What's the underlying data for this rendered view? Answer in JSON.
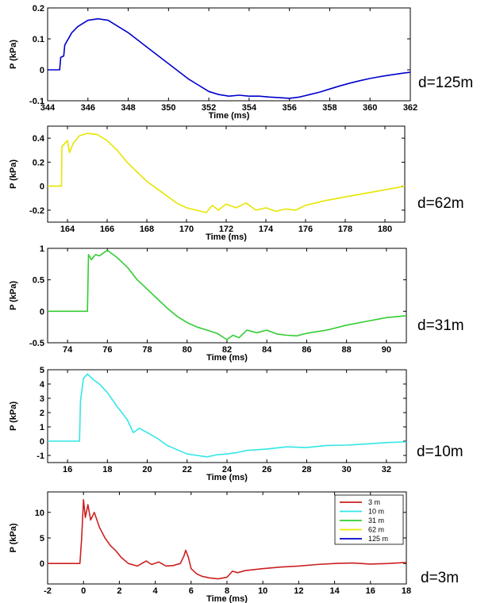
{
  "chart_data": [
    {
      "type": "line",
      "xlabel": "Time (ms)",
      "ylabel": "P (kPa)",
      "side_label": "d=125m",
      "xlim": [
        344,
        362
      ],
      "ylim": [
        -0.1,
        0.2
      ],
      "xticks": [
        344,
        346,
        348,
        350,
        352,
        354,
        356,
        358,
        360,
        362
      ],
      "xtick_labels": [
        "344",
        "346",
        "348",
        "350",
        "352",
        "354",
        "356",
        "358",
        "360",
        "362"
      ],
      "yticks": [
        -0.1,
        0,
        0.1,
        0.2
      ],
      "ytick_labels": [
        "-0.1",
        "0",
        "0.1",
        "0.2"
      ],
      "color": "#0000cc",
      "series": [
        {
          "x": [
            344,
            344.6,
            344.65,
            344.8,
            344.85,
            345.2,
            345.5,
            346,
            346.5,
            347,
            347.5,
            348,
            348.5,
            349,
            349.5,
            350,
            350.5,
            351,
            351.5,
            352,
            352.5,
            353,
            353.5,
            354,
            354.5,
            355,
            355.5,
            356,
            356.5,
            357,
            357.5,
            358,
            358.5,
            359,
            359.5,
            360,
            360.5,
            361,
            361.5,
            362
          ],
          "y": [
            0,
            0,
            0.04,
            0.045,
            0.08,
            0.12,
            0.14,
            0.16,
            0.165,
            0.16,
            0.14,
            0.12,
            0.095,
            0.07,
            0.045,
            0.02,
            -0.005,
            -0.03,
            -0.05,
            -0.07,
            -0.08,
            -0.085,
            -0.082,
            -0.085,
            -0.085,
            -0.088,
            -0.09,
            -0.092,
            -0.088,
            -0.08,
            -0.072,
            -0.062,
            -0.052,
            -0.043,
            -0.035,
            -0.028,
            -0.022,
            -0.017,
            -0.012,
            -0.008
          ]
        }
      ]
    },
    {
      "type": "line",
      "xlabel": "Time (ms)",
      "ylabel": "P (kPa)",
      "side_label": "d=62m",
      "xlim": [
        163,
        181
      ],
      "ylim": [
        -0.3,
        0.5
      ],
      "xticks": [
        164,
        166,
        168,
        170,
        172,
        174,
        176,
        178,
        180
      ],
      "xtick_labels": [
        "164",
        "166",
        "168",
        "170",
        "172",
        "174",
        "176",
        "178",
        "180"
      ],
      "yticks": [
        -0.2,
        0,
        0.2,
        0.4
      ],
      "ytick_labels": [
        "-0.2",
        "0",
        "0.2",
        "0.4"
      ],
      "color": "#e6e600",
      "series": [
        {
          "x": [
            163,
            163.7,
            163.72,
            164,
            164.1,
            164.3,
            164.6,
            165,
            165.5,
            166,
            166.5,
            167,
            167.5,
            168,
            168.5,
            169,
            169.5,
            170,
            170.5,
            171,
            171.3,
            171.6,
            172,
            172.5,
            173,
            173.5,
            174,
            174.5,
            175,
            175.5,
            176,
            177,
            178,
            179,
            180,
            181
          ],
          "y": [
            0,
            0,
            0.33,
            0.38,
            0.28,
            0.36,
            0.42,
            0.44,
            0.43,
            0.38,
            0.3,
            0.2,
            0.12,
            0.04,
            -0.02,
            -0.08,
            -0.14,
            -0.18,
            -0.2,
            -0.22,
            -0.16,
            -0.2,
            -0.15,
            -0.18,
            -0.14,
            -0.2,
            -0.18,
            -0.21,
            -0.19,
            -0.2,
            -0.16,
            -0.12,
            -0.09,
            -0.06,
            -0.03,
            0
          ]
        }
      ]
    },
    {
      "type": "line",
      "xlabel": "Time (ms)",
      "ylabel": "P (kPa)",
      "side_label": "d=31m",
      "xlim": [
        73,
        91
      ],
      "ylim": [
        -0.5,
        1
      ],
      "xticks": [
        74,
        76,
        78,
        80,
        82,
        84,
        86,
        88,
        90
      ],
      "xtick_labels": [
        "74",
        "76",
        "78",
        "80",
        "82",
        "84",
        "86",
        "88",
        "90"
      ],
      "yticks": [
        -0.5,
        0,
        0.5,
        1
      ],
      "ytick_labels": [
        "-0.5",
        "0",
        "0.5",
        "1"
      ],
      "color": "#33cc33",
      "series": [
        {
          "x": [
            73,
            75,
            75.05,
            75.2,
            75.4,
            75.6,
            76,
            76.5,
            77,
            77.5,
            78,
            78.5,
            79,
            79.5,
            80,
            80.5,
            81,
            81.5,
            82,
            82.3,
            82.6,
            83,
            83.5,
            84,
            84.5,
            85,
            85.5,
            86,
            87,
            88,
            89,
            90,
            91
          ],
          "y": [
            0,
            0,
            0.9,
            0.82,
            0.9,
            0.88,
            0.97,
            0.85,
            0.7,
            0.5,
            0.35,
            0.2,
            0.05,
            -0.08,
            -0.18,
            -0.25,
            -0.3,
            -0.35,
            -0.45,
            -0.38,
            -0.42,
            -0.3,
            -0.34,
            -0.3,
            -0.36,
            -0.38,
            -0.39,
            -0.35,
            -0.3,
            -0.22,
            -0.16,
            -0.1,
            -0.07
          ]
        }
      ]
    },
    {
      "type": "line",
      "xlabel": "Time (ms)",
      "ylabel": "P (kPa)",
      "side_label": "d=10m",
      "xlim": [
        15,
        33
      ],
      "ylim": [
        -1.5,
        5
      ],
      "xticks": [
        16,
        18,
        20,
        22,
        24,
        26,
        28,
        30,
        32
      ],
      "xtick_labels": [
        "16",
        "18",
        "20",
        "22",
        "24",
        "26",
        "28",
        "30",
        "32"
      ],
      "yticks": [
        -1,
        0,
        1,
        2,
        3,
        4,
        5
      ],
      "ytick_labels": [
        "-1",
        "0",
        "1",
        "2",
        "3",
        "4",
        "5"
      ],
      "color": "#33e6e6",
      "series": [
        {
          "x": [
            15,
            16.6,
            16.65,
            16.8,
            17,
            17.3,
            17.6,
            18,
            18.5,
            19,
            19.3,
            19.6,
            20,
            20.5,
            21,
            21.5,
            22,
            22.5,
            23,
            23.5,
            24,
            24.5,
            25,
            26,
            27,
            28,
            29,
            30,
            31,
            32,
            33
          ],
          "y": [
            0,
            0,
            2.8,
            4.4,
            4.7,
            4.3,
            4.0,
            3.4,
            2.4,
            1.5,
            0.6,
            0.9,
            0.6,
            0.2,
            -0.3,
            -0.6,
            -0.9,
            -1.0,
            -1.1,
            -0.95,
            -0.9,
            -0.8,
            -0.65,
            -0.55,
            -0.4,
            -0.45,
            -0.3,
            -0.28,
            -0.2,
            -0.1,
            -0.05
          ]
        }
      ]
    },
    {
      "type": "line",
      "xlabel": "Time (ms)",
      "ylabel": "P (kPa)",
      "side_label": "d=3m",
      "xlim": [
        -2,
        18
      ],
      "ylim": [
        -4,
        14
      ],
      "xticks": [
        -2,
        0,
        2,
        4,
        6,
        8,
        10,
        12,
        14,
        16,
        18
      ],
      "xtick_labels": [
        "-2",
        "0",
        "2",
        "4",
        "6",
        "8",
        "10",
        "12",
        "14",
        "16",
        "18"
      ],
      "yticks": [
        0,
        5,
        10
      ],
      "ytick_labels": [
        "0",
        "5",
        "10"
      ],
      "color": "#cc2020",
      "legend": {
        "position": "top-right",
        "entries": [
          {
            "label": "3 m",
            "color": "#cc2020"
          },
          {
            "label": "10 m",
            "color": "#33e6e6"
          },
          {
            "label": "31 m",
            "color": "#33cc33"
          },
          {
            "label": "62 m",
            "color": "#e6e600"
          },
          {
            "label": "125 m",
            "color": "#0000cc"
          }
        ]
      },
      "series": [
        {
          "x": [
            -2,
            -0.2,
            -0.1,
            0,
            0.1,
            0.25,
            0.4,
            0.6,
            0.9,
            1.2,
            1.5,
            1.8,
            2.1,
            2.5,
            3,
            3.5,
            3.8,
            4.2,
            4.6,
            5,
            5.4,
            5.6,
            5.7,
            5.85,
            6,
            6.3,
            6.6,
            7,
            7.5,
            8,
            8.3,
            8.6,
            9,
            10,
            11,
            12,
            13,
            14,
            15,
            16,
            17,
            18
          ],
          "y": [
            0,
            0,
            5,
            12.5,
            9,
            11.5,
            8.5,
            10,
            7,
            5,
            3.5,
            2.5,
            1.2,
            0,
            -0.5,
            0.5,
            -0.2,
            0.3,
            -0.5,
            -0.4,
            0,
            1.5,
            2.6,
            1.2,
            -1,
            -2,
            -2.5,
            -2.8,
            -3,
            -2.7,
            -1.5,
            -1.8,
            -1.4,
            -1.0,
            -0.7,
            -0.5,
            -0.2,
            0,
            0.1,
            -0.1,
            0,
            0.2
          ]
        }
      ]
    }
  ]
}
